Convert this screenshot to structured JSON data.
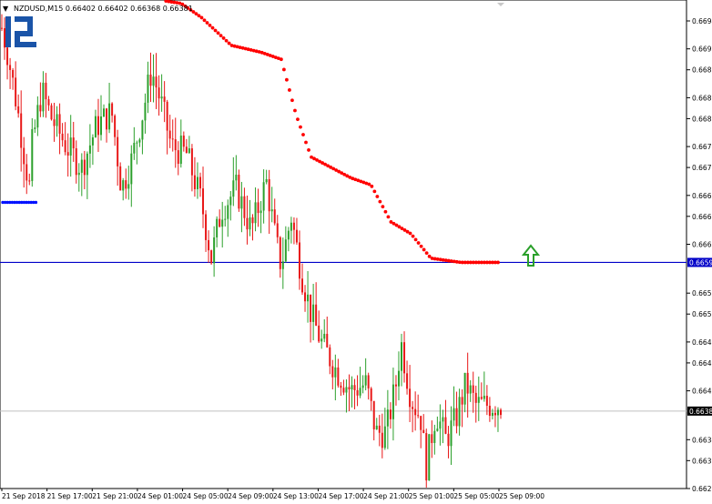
{
  "window": {
    "symbol_header": "NZDUSD,M15  0.66402 0.66402 0.66368 0.66381",
    "menu_arrow": "▼"
  },
  "logo": {
    "icon": "broker-r-logo"
  },
  "colors": {
    "bull": "#2ca02c",
    "bear": "#e81818",
    "sar": "#ff0000",
    "level": "#0000c8",
    "blue_dots": "#0010ff",
    "arrow": "#2aa02a",
    "axis": "#000000",
    "price_line": "#c0c0c0"
  },
  "chart_data": {
    "type": "candlestick",
    "symbol": "NZDUSD",
    "timeframe": "M15",
    "ylim": [
      0.6627,
      0.6697
    ],
    "y_ticks": [
      "0.6694",
      "0.6690",
      "0.6687",
      "0.6683",
      "0.6680",
      "0.6676",
      "0.6673",
      "0.6669",
      "0.6666",
      "0.6662",
      "0.6655",
      "0.6652",
      "0.6648",
      "0.6645",
      "0.6641",
      "0.6634",
      "0.6631",
      "0.6627"
    ],
    "x_ticks": [
      "21 Sep 2018",
      "21 Sep 17:00",
      "21 Sep 21:00",
      "24 Sep 01:00",
      "24 Sep 05:00",
      "24 Sep 09:00",
      "24 Sep 13:00",
      "24 Sep 17:00",
      "24 Sep 21:00",
      "25 Sep 01:00",
      "25 Sep 05:00",
      "25 Sep 09:00"
    ],
    "horizontal_level": {
      "value": 0.66594,
      "label": "0.6659"
    },
    "current_price": {
      "value": 0.66381,
      "label": "0.6638"
    },
    "blue_level": {
      "value": 0.6668
    },
    "annotation": "up-arrow",
    "sar_path": [
      [
        0.0,
        0.67025
      ],
      [
        0.28,
        0.66974
      ],
      [
        0.36,
        0.66965
      ],
      [
        0.4,
        0.66945
      ],
      [
        0.46,
        0.66905
      ],
      [
        0.52,
        0.66895
      ],
      [
        0.56,
        0.66885
      ],
      [
        0.59,
        0.66805
      ],
      [
        0.62,
        0.66745
      ],
      [
        0.7,
        0.66715
      ],
      [
        0.74,
        0.66705
      ],
      [
        0.78,
        0.66652
      ],
      [
        0.82,
        0.66635
      ],
      [
        0.86,
        0.666
      ],
      [
        0.92,
        0.66594
      ]
    ],
    "close_path": [
      [
        0.0,
        0.6693
      ],
      [
        0.01,
        0.669
      ],
      [
        0.03,
        0.6682
      ],
      [
        0.055,
        0.667
      ],
      [
        0.06,
        0.6676
      ],
      [
        0.08,
        0.6684
      ],
      [
        0.1,
        0.668
      ],
      [
        0.13,
        0.6676
      ],
      [
        0.16,
        0.6673
      ],
      [
        0.19,
        0.6679
      ],
      [
        0.22,
        0.6681
      ],
      [
        0.24,
        0.667
      ],
      [
        0.26,
        0.6674
      ],
      [
        0.28,
        0.668
      ],
      [
        0.3,
        0.6687
      ],
      [
        0.32,
        0.6682
      ],
      [
        0.34,
        0.6676
      ],
      [
        0.37,
        0.6675
      ],
      [
        0.4,
        0.6668
      ],
      [
        0.42,
        0.666
      ],
      [
        0.44,
        0.6667
      ],
      [
        0.47,
        0.667
      ],
      [
        0.5,
        0.6664
      ],
      [
        0.53,
        0.6671
      ],
      [
        0.55,
        0.6662
      ],
      [
        0.56,
        0.6659
      ],
      [
        0.58,
        0.6666
      ],
      [
        0.6,
        0.6658
      ],
      [
        0.62,
        0.6652
      ],
      [
        0.64,
        0.6648
      ],
      [
        0.67,
        0.6644
      ],
      [
        0.7,
        0.6641
      ],
      [
        0.73,
        0.6642
      ],
      [
        0.75,
        0.6635
      ],
      [
        0.77,
        0.6635
      ],
      [
        0.79,
        0.6642
      ],
      [
        0.8,
        0.6648
      ],
      [
        0.82,
        0.664
      ],
      [
        0.84,
        0.6637
      ],
      [
        0.85,
        0.663
      ],
      [
        0.87,
        0.6638
      ],
      [
        0.89,
        0.6634
      ],
      [
        0.91,
        0.6637
      ],
      [
        0.93,
        0.6642
      ],
      [
        0.95,
        0.6639
      ]
    ]
  }
}
